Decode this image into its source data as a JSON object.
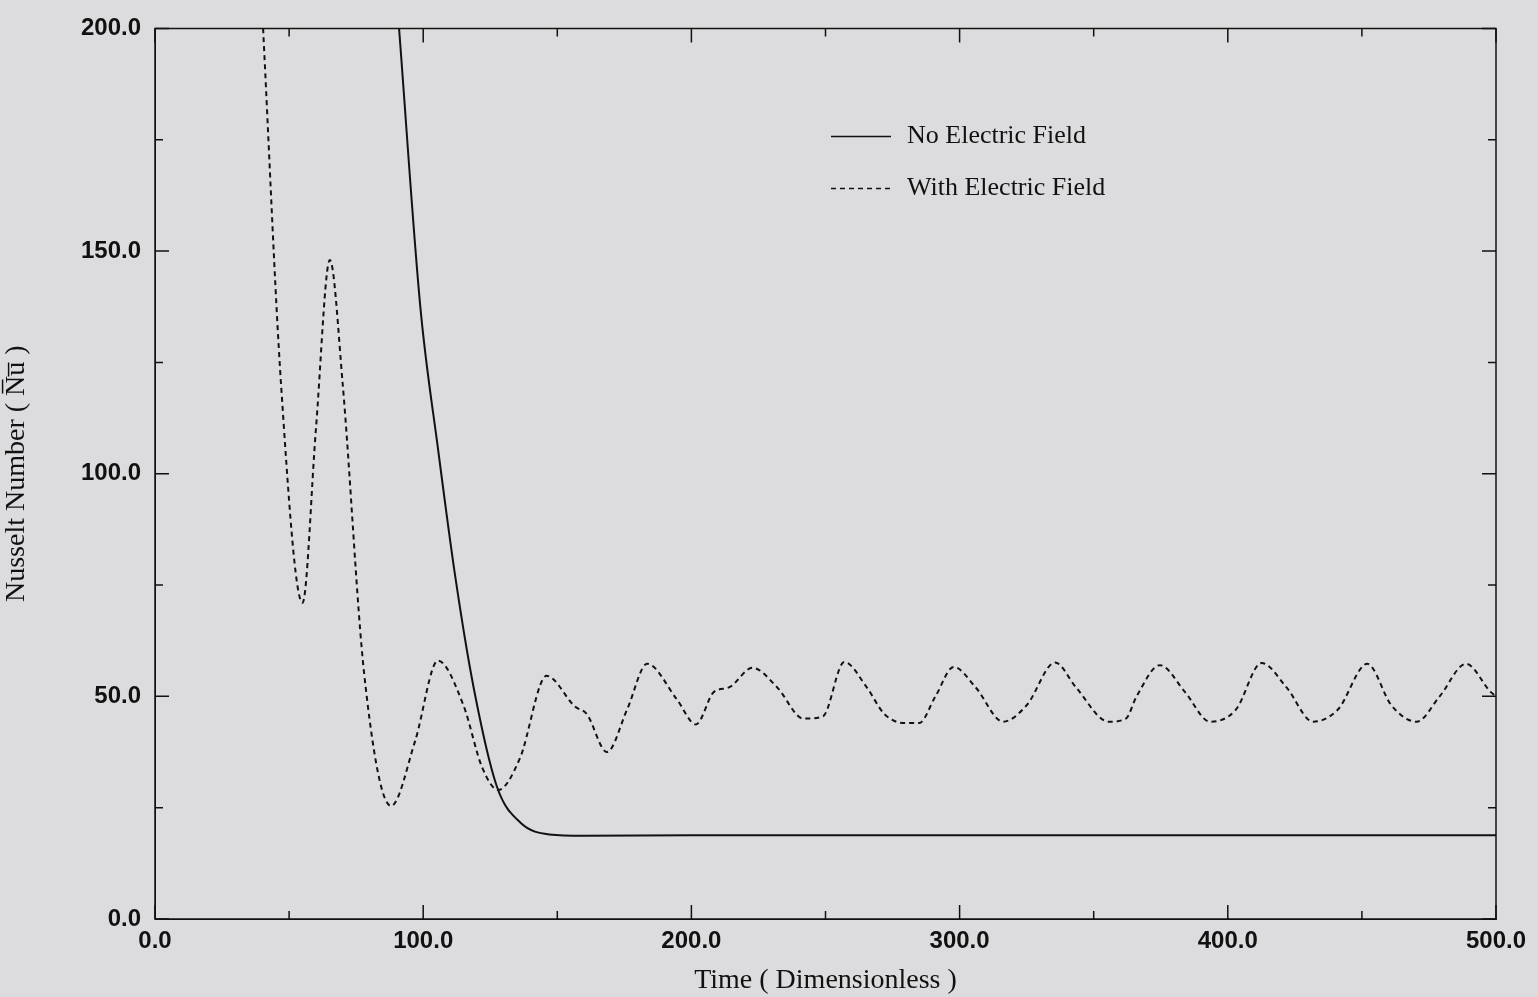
{
  "chart_data": {
    "type": "line",
    "xlabel": "Time ( Dimensionless )",
    "ylabel": "Nusselt Number ( N̅u̅ )",
    "xlim": [
      0,
      500
    ],
    "ylim": [
      0,
      200
    ],
    "xticks": [
      {
        "value": 0,
        "label": "0.0"
      },
      {
        "value": 50,
        "label": null
      },
      {
        "value": 100,
        "label": "100.0"
      },
      {
        "value": 150,
        "label": null
      },
      {
        "value": 200,
        "label": "200.0"
      },
      {
        "value": 250,
        "label": null
      },
      {
        "value": 300,
        "label": "300.0"
      },
      {
        "value": 350,
        "label": null
      },
      {
        "value": 400,
        "label": "400.0"
      },
      {
        "value": 450,
        "label": null
      },
      {
        "value": 500,
        "label": "500.0"
      }
    ],
    "yticks": [
      {
        "value": 0,
        "label": "0.0"
      },
      {
        "value": 25,
        "label": null
      },
      {
        "value": 50,
        "label": "50.0"
      },
      {
        "value": 75,
        "label": null
      },
      {
        "value": 100,
        "label": "100.0"
      },
      {
        "value": 125,
        "label": null
      },
      {
        "value": 150,
        "label": "150.0"
      },
      {
        "value": 175,
        "label": null
      },
      {
        "value": 200,
        "label": "200.0"
      }
    ],
    "legend": "top right",
    "grid": false,
    "marker": "none",
    "series": [
      {
        "name": "No Electric Field",
        "color": "#111111",
        "line_style": "solid",
        "x": [
          91,
          99,
          105.5,
          112,
          118.8,
          127.5,
          136.3,
          147,
          160,
          200,
          300,
          400,
          500
        ],
        "values": [
          200,
          137,
          105.7,
          76.7,
          52,
          29.7,
          21.6,
          19,
          18.7,
          18.8,
          18.8,
          18.8,
          18.8
        ]
      },
      {
        "name": "With Electric Field",
        "color": "#111111",
        "line_style": "dashed",
        "x": [
          40.3,
          47,
          55,
          60,
          65.2,
          70,
          78,
          88,
          97,
          105.5,
          115,
          122,
          128,
          136,
          146,
          156.6,
          161,
          168.5,
          176,
          183.5,
          194.6,
          201.7,
          208.4,
          214,
          222.8,
          232,
          241.8,
          249,
          257,
          265.4,
          272,
          279.6,
          284.9,
          291,
          297.8,
          306,
          316.2,
          325,
          335.6,
          343.4,
          355.6,
          362,
          366,
          374.7,
          384,
          393.4,
          403,
          412.6,
          421.9,
          431.8,
          441,
          452,
          461,
          470.4,
          479,
          488.8,
          498,
          500
        ],
        "values": [
          200,
          120,
          71,
          110,
          148,
          120,
          55,
          25.4,
          40,
          58,
          48,
          34,
          29,
          36,
          54.6,
          47.7,
          46,
          37.5,
          47,
          57.3,
          49.3,
          43.7,
          51,
          52,
          56.4,
          52,
          45,
          45.5,
          57.7,
          52,
          46,
          44,
          44,
          50,
          56.6,
          52,
          44.3,
          48,
          57.6,
          52,
          44.3,
          45,
          50,
          57,
          51,
          44.3,
          47,
          57.5,
          52,
          44.3,
          47,
          57.3,
          48,
          44.3,
          50,
          57.3,
          51,
          50
        ]
      }
    ]
  }
}
